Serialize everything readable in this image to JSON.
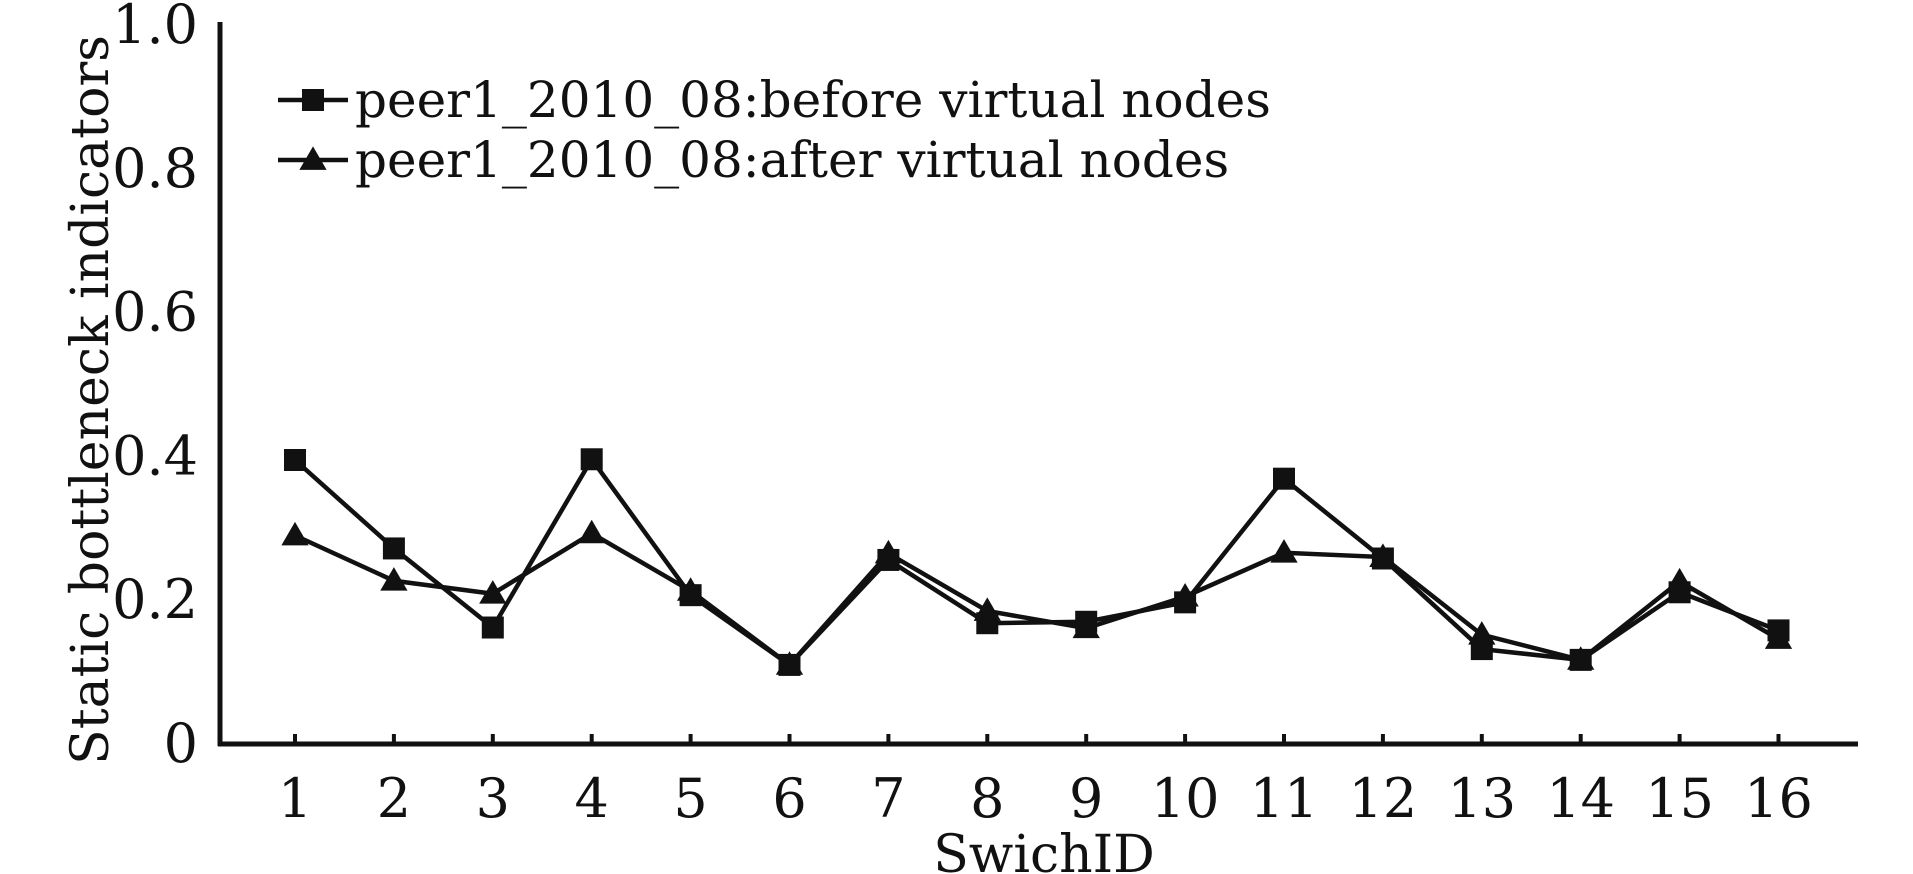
{
  "chart_data": {
    "type": "line",
    "xlabel": "SwichID",
    "ylabel": "Static bottleneck indicators",
    "categories": [
      "1",
      "2",
      "3",
      "4",
      "5",
      "6",
      "7",
      "8",
      "9",
      "10",
      "11",
      "12",
      "13",
      "14",
      "15",
      "16"
    ],
    "ylim": [
      0,
      1.0
    ],
    "yticks": [
      "0",
      "0.2",
      "0.4",
      "0.6",
      "0.8",
      "1.0"
    ],
    "grid": false,
    "legend_position": "top-left",
    "series": [
      {
        "name": "peer1_2010_08:before virtual nodes",
        "marker": "square",
        "color": "#111111",
        "values": [
          0.395,
          0.272,
          0.162,
          0.396,
          0.207,
          0.11,
          0.256,
          0.168,
          0.17,
          0.197,
          0.369,
          0.258,
          0.132,
          0.117,
          0.211,
          0.158
        ]
      },
      {
        "name": "peer1_2010_08:after virtual nodes",
        "marker": "triangle",
        "color": "#111111",
        "values": [
          0.29,
          0.227,
          0.209,
          0.293,
          0.213,
          0.11,
          0.265,
          0.185,
          0.161,
          0.205,
          0.266,
          0.26,
          0.152,
          0.117,
          0.226,
          0.146
        ]
      }
    ]
  }
}
